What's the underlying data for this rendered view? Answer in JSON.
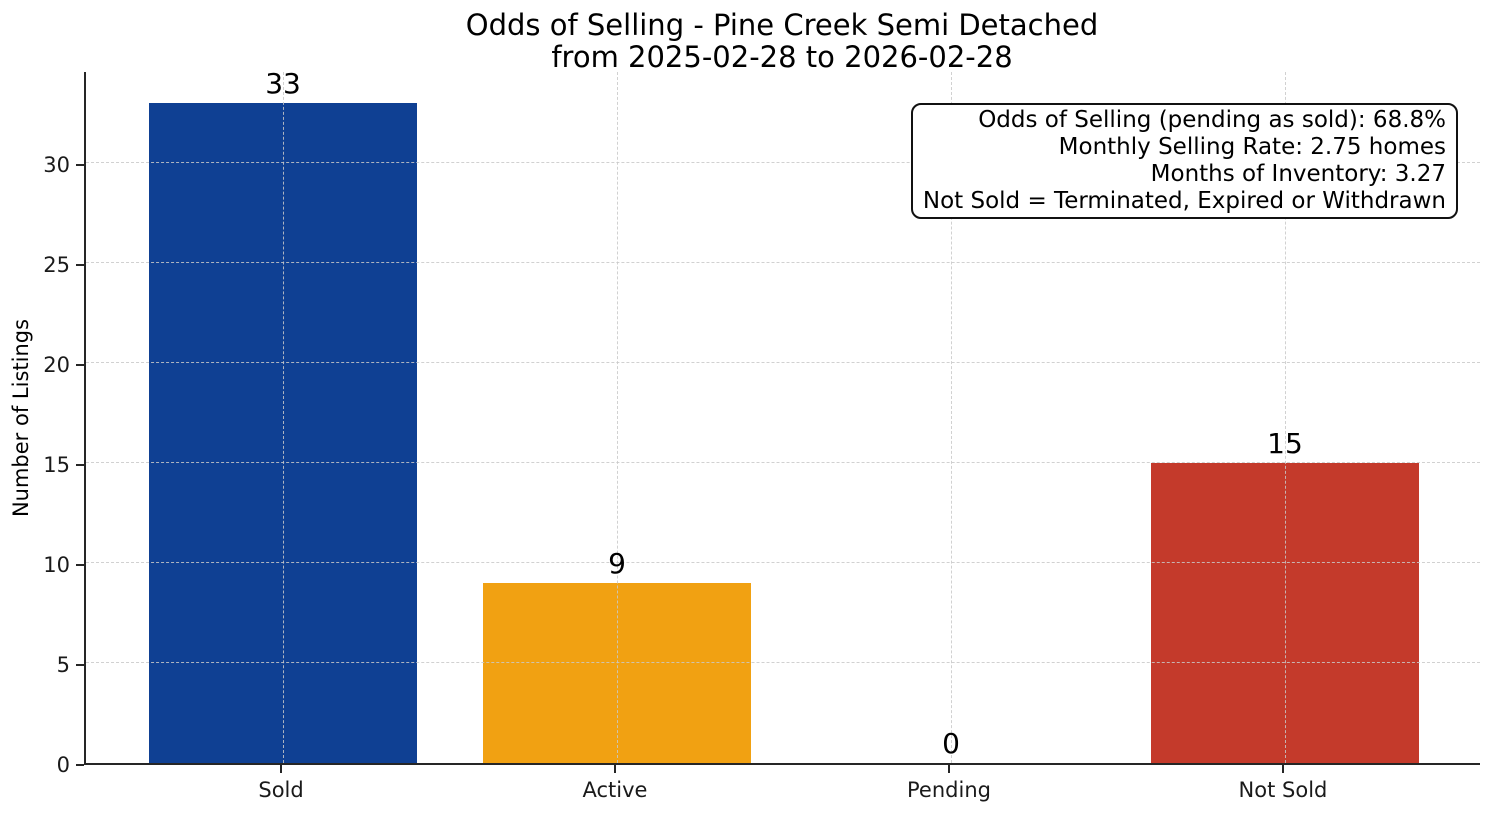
{
  "figure": {
    "title_line1": "Odds of Selling - Pine Creek Semi Detached",
    "title_line2": "from 2025-02-28 to 2026-02-28"
  },
  "chart_data": {
    "type": "bar",
    "title": "Odds of Selling - Pine Creek Semi Detached\nfrom 2025-02-28 to 2026-02-28",
    "categories": [
      "Sold",
      "Active",
      "Pending",
      "Not Sold"
    ],
    "values": [
      33,
      9,
      0,
      15
    ],
    "bar_value_labels": [
      "33",
      "9",
      "0",
      "15"
    ],
    "bar_colors": [
      "#0f4093",
      "#f1a112",
      null,
      "#c43a2b"
    ],
    "xlabel": "",
    "ylabel": "Number of Listings",
    "yticks": [
      0,
      5,
      10,
      15,
      20,
      25,
      30
    ],
    "ylim": [
      0,
      34.65
    ],
    "grid": {
      "style": "dashed",
      "axes": "both",
      "color": "#c9c9c9"
    },
    "legend": null,
    "annotation": {
      "position": "top-right",
      "align": "right",
      "lines": [
        "Odds of Selling (pending as sold): 68.8%",
        "Monthly Selling Rate: 2.75 homes",
        "Months of Inventory: 3.27",
        "Not Sold = Terminated, Expired or Withdrawn"
      ]
    }
  },
  "colors": {
    "background": "#ffffff",
    "spine": "#262626",
    "grid": "#c9c9c9",
    "bar_sold": "#0f4093",
    "bar_active": "#f1a112",
    "bar_not_sold": "#c43a2b",
    "text": "#000000"
  }
}
